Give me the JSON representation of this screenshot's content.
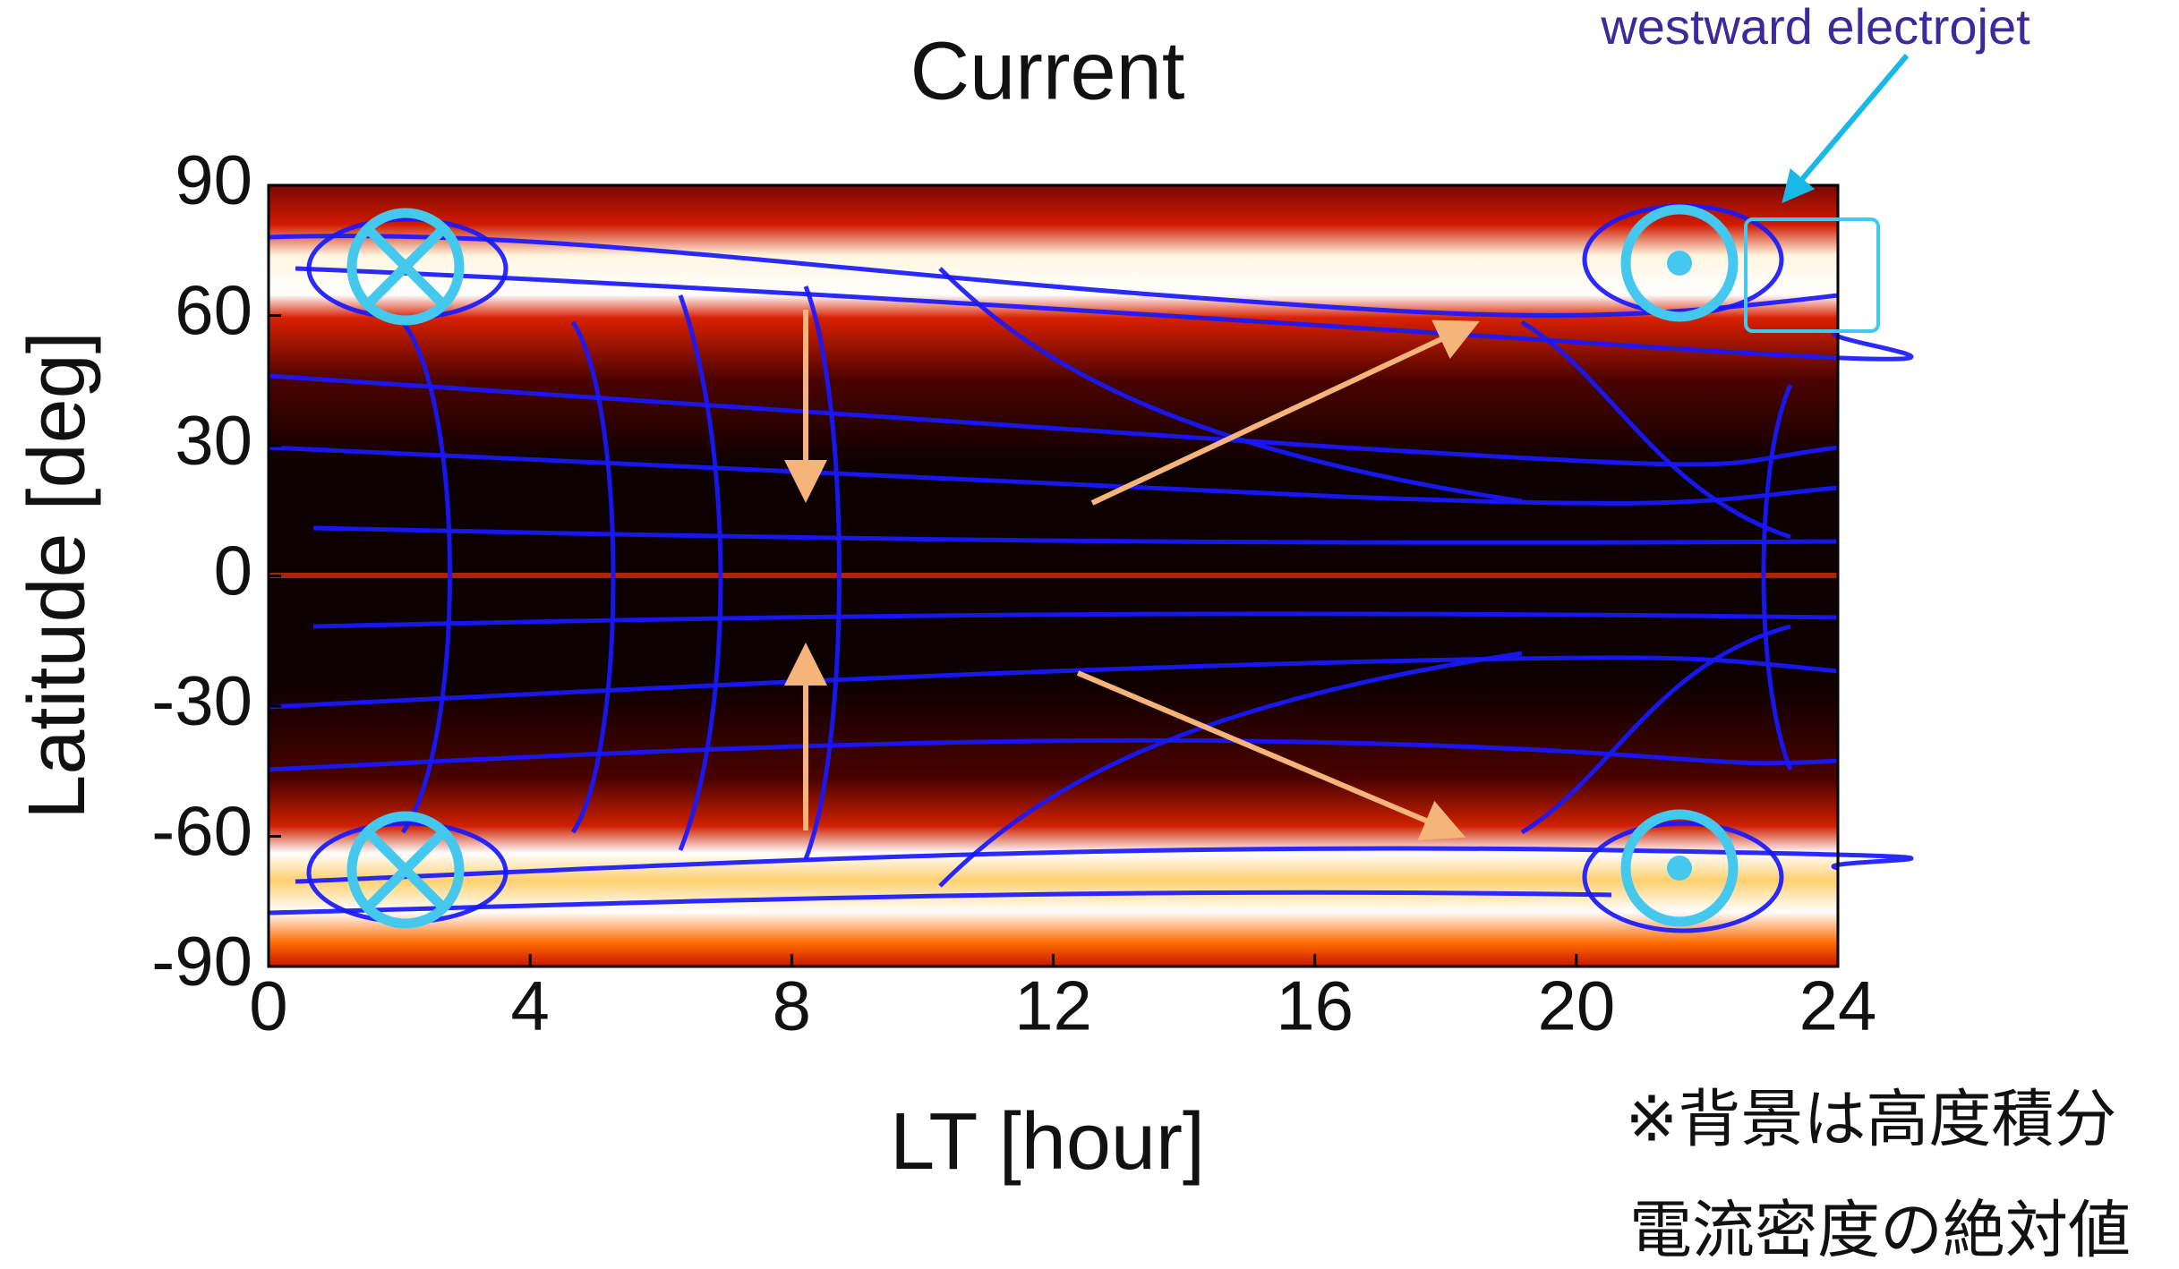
{
  "chart_data": {
    "type": "streamplot",
    "title": "Current",
    "x_label": "LT [hour]",
    "y_label": "Latitude [deg]",
    "xlim": [
      0,
      24
    ],
    "xticks": [
      0,
      4,
      8,
      12,
      16,
      20,
      24
    ],
    "ylim": [
      -90,
      90
    ],
    "yticks": [
      -90,
      -60,
      -30,
      0,
      30,
      60,
      90
    ],
    "annotations": [
      "westward electrojet",
      "※背景は高度積分",
      "電流密度の絶対値"
    ]
  }
}
